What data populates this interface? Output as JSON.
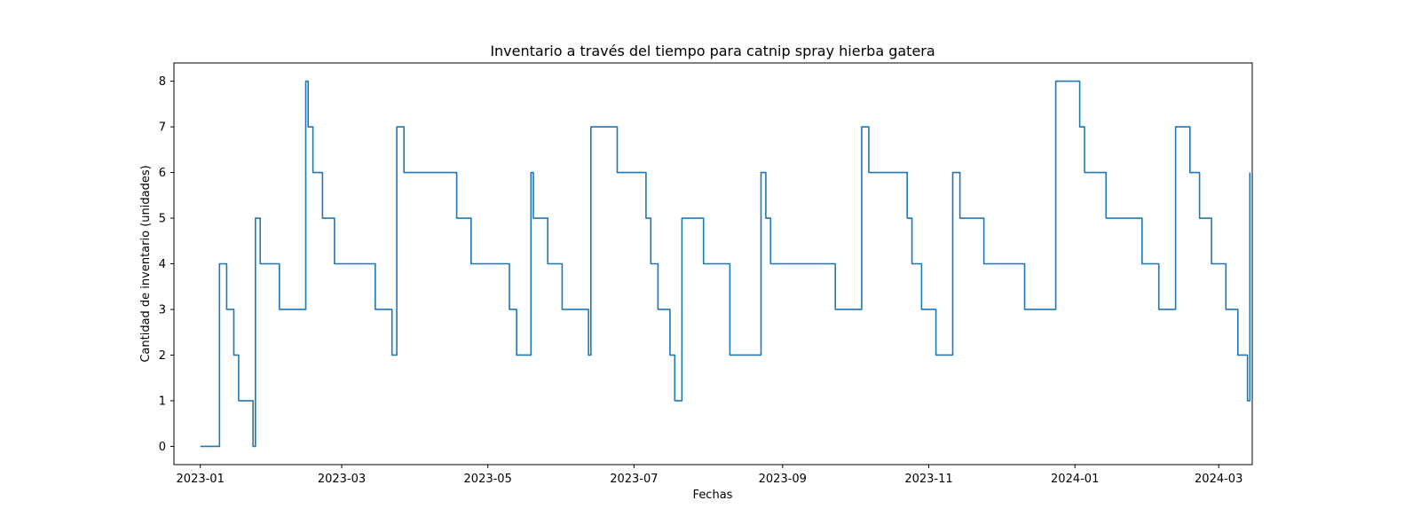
{
  "chart_data": {
    "type": "line",
    "title": "Inventario a través del tiempo para catnip spray hierba gatera",
    "xlabel": "Fechas",
    "ylabel": "Cantidad de inventario (unidades)",
    "xlim": [
      "2022-12-21",
      "2024-03-15"
    ],
    "ylim": [
      -0.4,
      8.4
    ],
    "grid": false,
    "x_ticks": [
      "2023-01",
      "2023-03",
      "2023-05",
      "2023-07",
      "2023-09",
      "2023-11",
      "2024-01",
      "2024-03"
    ],
    "y_ticks": [
      0,
      1,
      2,
      3,
      4,
      5,
      6,
      7,
      8
    ],
    "series": [
      {
        "color": "#1f77b4",
        "step": "post",
        "points": [
          [
            "2023-01-01",
            0
          ],
          [
            "2023-01-09",
            4
          ],
          [
            "2023-01-12",
            3
          ],
          [
            "2023-01-15",
            2
          ],
          [
            "2023-01-17",
            1
          ],
          [
            "2023-01-23",
            0
          ],
          [
            "2023-01-24",
            5
          ],
          [
            "2023-01-26",
            4
          ],
          [
            "2023-02-03",
            3
          ],
          [
            "2023-02-14",
            8
          ],
          [
            "2023-02-15",
            7
          ],
          [
            "2023-02-17",
            6
          ],
          [
            "2023-02-21",
            5
          ],
          [
            "2023-02-26",
            4
          ],
          [
            "2023-03-15",
            3
          ],
          [
            "2023-03-22",
            2
          ],
          [
            "2023-03-24",
            7
          ],
          [
            "2023-03-27",
            6
          ],
          [
            "2023-04-18",
            5
          ],
          [
            "2023-04-24",
            4
          ],
          [
            "2023-05-10",
            3
          ],
          [
            "2023-05-13",
            2
          ],
          [
            "2023-05-19",
            6
          ],
          [
            "2023-05-20",
            5
          ],
          [
            "2023-05-26",
            4
          ],
          [
            "2023-06-01",
            3
          ],
          [
            "2023-06-12",
            2
          ],
          [
            "2023-06-13",
            7
          ],
          [
            "2023-06-24",
            6
          ],
          [
            "2023-07-06",
            5
          ],
          [
            "2023-07-08",
            4
          ],
          [
            "2023-07-11",
            3
          ],
          [
            "2023-07-16",
            2
          ],
          [
            "2023-07-18",
            1
          ],
          [
            "2023-07-21",
            5
          ],
          [
            "2023-07-30",
            4
          ],
          [
            "2023-08-10",
            2
          ],
          [
            "2023-08-23",
            6
          ],
          [
            "2023-08-25",
            5
          ],
          [
            "2023-08-27",
            4
          ],
          [
            "2023-09-23",
            3
          ],
          [
            "2023-10-04",
            7
          ],
          [
            "2023-10-07",
            6
          ],
          [
            "2023-10-23",
            5
          ],
          [
            "2023-10-25",
            4
          ],
          [
            "2023-10-29",
            3
          ],
          [
            "2023-11-04",
            2
          ],
          [
            "2023-11-11",
            6
          ],
          [
            "2023-11-14",
            5
          ],
          [
            "2023-11-24",
            4
          ],
          [
            "2023-12-11",
            3
          ],
          [
            "2023-12-24",
            8
          ],
          [
            "2024-01-03",
            7
          ],
          [
            "2024-01-05",
            6
          ],
          [
            "2024-01-14",
            5
          ],
          [
            "2024-01-29",
            4
          ],
          [
            "2024-02-05",
            3
          ],
          [
            "2024-02-12",
            7
          ],
          [
            "2024-02-18",
            6
          ],
          [
            "2024-02-22",
            5
          ],
          [
            "2024-02-27",
            4
          ],
          [
            "2024-03-04",
            3
          ],
          [
            "2024-03-09",
            2
          ],
          [
            "2024-03-13",
            1
          ],
          [
            "2024-03-14",
            6
          ]
        ]
      }
    ]
  }
}
